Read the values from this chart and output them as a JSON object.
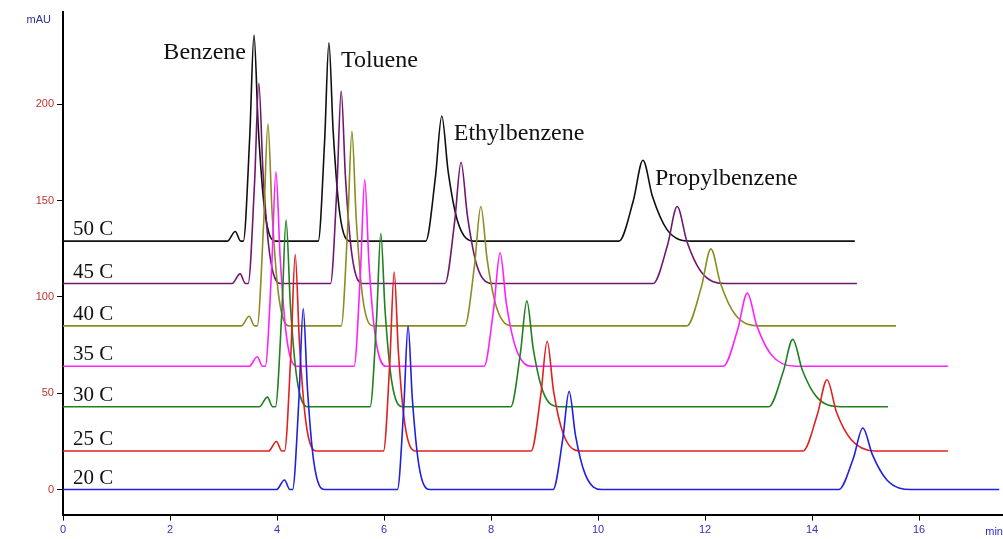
{
  "chart_data": {
    "type": "line",
    "xlabel": "min",
    "ylabel": "mAU",
    "legend": false,
    "xlim": [
      0,
      17.57
    ],
    "xticks": [
      0,
      2,
      4,
      6,
      8,
      10,
      12,
      14,
      16
    ],
    "ylim": [
      -13,
      248
    ],
    "yticks": [
      0,
      50,
      100,
      150,
      200
    ],
    "annotations": [
      {
        "text": "Benzene",
        "x": 3.57,
        "y": 236
      },
      {
        "text": "Toluene",
        "x": 4.97,
        "y": 232
      },
      {
        "text": "Ethylbenzene",
        "x": 7.08,
        "y": 194
      },
      {
        "text": "Propylbenzene",
        "x": 10.84,
        "y": 171
      }
    ],
    "series": [
      {
        "name": "20 C",
        "color": "#2020e0",
        "x": [
          0,
          3.99,
          4.14,
          4.24,
          4.29,
          4.41,
          4.49,
          4.57,
          4.69,
          4.89,
          6.25,
          6.37,
          6.45,
          6.53,
          6.65,
          6.85,
          9.16,
          9.34,
          9.46,
          9.58,
          9.76,
          10.06,
          14.5,
          14.77,
          14.95,
          15.13,
          15.4,
          15.85,
          17.5
        ],
        "values": [
          0,
          0,
          5,
          0,
          0,
          47,
          94,
          52,
          14,
          0,
          0,
          43,
          85,
          47,
          13,
          0,
          0,
          26,
          51,
          28,
          8,
          0,
          0,
          16,
          32,
          18,
          5,
          0,
          0
        ]
      },
      {
        "name": "25 C",
        "color": "#e02020",
        "x": [
          0,
          3.84,
          3.99,
          4.09,
          4.14,
          4.26,
          4.34,
          4.42,
          4.54,
          4.74,
          5.99,
          6.11,
          6.19,
          6.27,
          6.39,
          6.59,
          8.75,
          8.93,
          9.05,
          9.17,
          9.35,
          9.65,
          13.83,
          14.1,
          14.28,
          14.46,
          14.73,
          15.18,
          16.54
        ],
        "values": [
          20,
          20,
          25,
          20,
          20,
          71,
          122,
          76,
          35,
          20,
          20,
          67,
          113,
          71,
          34,
          20,
          20,
          49,
          77,
          51,
          29,
          20,
          20,
          39,
          57,
          40,
          26,
          20,
          20
        ]
      },
      {
        "name": "30 C",
        "color": "#208020",
        "x": [
          0,
          3.67,
          3.82,
          3.92,
          3.97,
          4.09,
          4.17,
          4.25,
          4.37,
          4.57,
          5.74,
          5.86,
          5.94,
          6.02,
          6.14,
          6.34,
          8.37,
          8.55,
          8.67,
          8.79,
          8.97,
          9.27,
          13.19,
          13.46,
          13.64,
          13.82,
          14.09,
          14.54,
          15.42
        ],
        "values": [
          43,
          43,
          48,
          43,
          43,
          92,
          140,
          96,
          58,
          43,
          43,
          88,
          133,
          93,
          57,
          43,
          43,
          71,
          98,
          73,
          51,
          43,
          43,
          61,
          78,
          62,
          48,
          43,
          43
        ]
      },
      {
        "name": "35 C",
        "color": "#ff20ff",
        "x": [
          0,
          3.48,
          3.63,
          3.73,
          3.78,
          3.9,
          3.98,
          4.06,
          4.18,
          4.38,
          5.44,
          5.56,
          5.64,
          5.72,
          5.84,
          6.04,
          7.87,
          8.05,
          8.17,
          8.29,
          8.47,
          8.77,
          12.34,
          12.61,
          12.79,
          12.97,
          13.24,
          13.69,
          16.54
        ],
        "values": [
          64,
          64,
          69,
          64,
          64,
          115,
          165,
          120,
          79,
          64,
          64,
          113,
          161,
          117,
          79,
          64,
          64,
          94,
          123,
          96,
          73,
          64,
          64,
          83,
          102,
          85,
          70,
          64,
          64
        ]
      },
      {
        "name": "40 C",
        "color": "#8c8c20",
        "x": [
          0,
          3.33,
          3.48,
          3.58,
          3.63,
          3.75,
          3.83,
          3.91,
          4.03,
          4.23,
          5.2,
          5.32,
          5.4,
          5.48,
          5.6,
          5.8,
          7.51,
          7.69,
          7.81,
          7.93,
          8.11,
          8.41,
          11.66,
          11.93,
          12.11,
          12.29,
          12.56,
          13.01,
          15.57
        ],
        "values": [
          85,
          85,
          90,
          85,
          85,
          138,
          190,
          143,
          101,
          85,
          85,
          136,
          186,
          141,
          100,
          85,
          85,
          116,
          147,
          119,
          94,
          85,
          85,
          105,
          125,
          107,
          91,
          85,
          85
        ]
      },
      {
        "name": "45 C",
        "color": "#701870",
        "x": [
          0,
          3.16,
          3.31,
          3.41,
          3.46,
          3.58,
          3.66,
          3.74,
          3.86,
          4.06,
          5.0,
          5.12,
          5.2,
          5.28,
          5.4,
          5.6,
          7.14,
          7.32,
          7.44,
          7.56,
          7.74,
          8.04,
          11.03,
          11.3,
          11.48,
          11.66,
          11.93,
          12.38,
          14.84
        ],
        "values": [
          107,
          107,
          112,
          107,
          107,
          159,
          211,
          164,
          123,
          107,
          107,
          157,
          207,
          162,
          122,
          107,
          107,
          139,
          170,
          142,
          116,
          107,
          107,
          127,
          147,
          129,
          113,
          107,
          107
        ]
      },
      {
        "name": "50 C",
        "color": "#101010",
        "x": [
          0,
          3.07,
          3.22,
          3.32,
          3.37,
          3.49,
          3.57,
          3.65,
          3.77,
          3.97,
          4.77,
          4.89,
          4.97,
          5.05,
          5.17,
          5.37,
          6.78,
          6.96,
          7.08,
          7.2,
          7.38,
          7.68,
          10.39,
          10.66,
          10.84,
          11.02,
          11.29,
          11.74,
          14.8
        ],
        "values": [
          129,
          129,
          134,
          129,
          129,
          183,
          236,
          188,
          145,
          129,
          129,
          181,
          232,
          186,
          144,
          129,
          129,
          162,
          194,
          165,
          139,
          129,
          129,
          150,
          171,
          152,
          135,
          129,
          129
        ]
      }
    ]
  }
}
